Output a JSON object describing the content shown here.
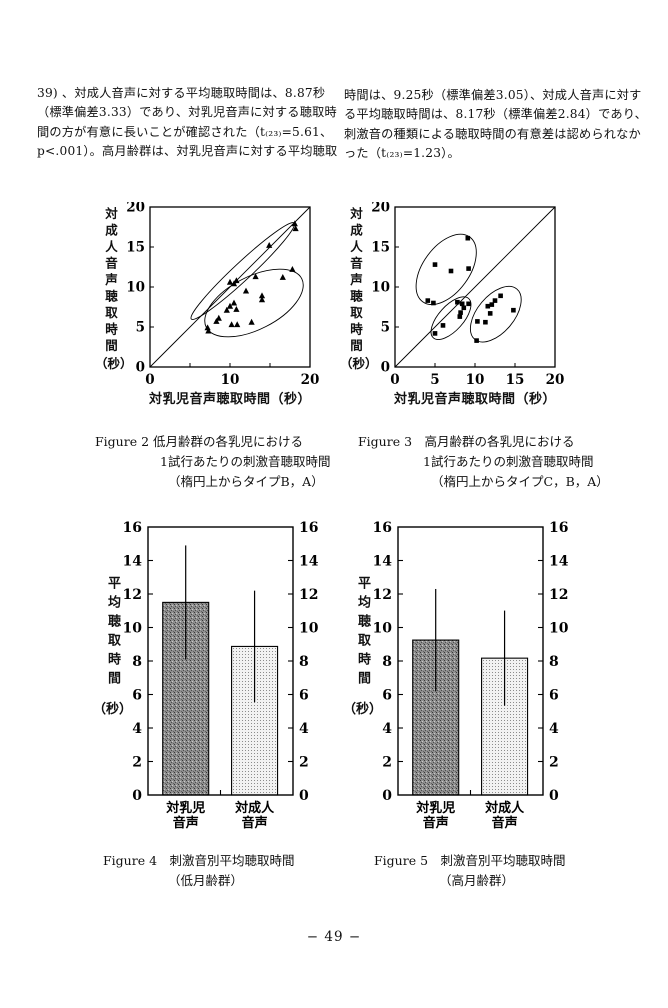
{
  "text": {
    "left_lines": [
      "39) 、対成人音声に対する平均聴取時間は、8.87秒",
      "（標準偏差3.33）であり、対乳児音声に対する聴取時",
      "間の方が有意に長いことが確認された（t₍₂₃₎=5.61、",
      "p<.001）。高月齢群は、対乳児音声に対する平均聴取"
    ],
    "right_lines": [
      "時間は、9.25秒（標準偏差3.05）、対成人音声に対す",
      "る平均聴取時間は、8.17秒（標準偏差2.84）であり、",
      "刺激音の種類による聴取時間の有意差は認められなか",
      "った（t₍₂₃₎=1.23）。"
    ]
  },
  "footer": {
    "page_number": "− 49 −"
  },
  "chart_data": [
    {
      "id": "figure2",
      "type": "scatter",
      "marker": "triangle",
      "caption_lines": [
        "Figure 2 低月齢群の各乳児における",
        "1試行あたりの刺激音聴取時間",
        "（楕円上からタイプB，A）"
      ],
      "xlabel": "対乳児音声聴取時間（秒）",
      "ylabel": "対成人音声聴取時間",
      "ylabel_unit": "（秒）",
      "xlim": [
        0,
        20
      ],
      "ylim": [
        0,
        20
      ],
      "xticks": [
        0,
        10,
        20
      ],
      "xticks_minor": [
        5,
        10,
        15
      ],
      "yticks": [
        0,
        5,
        10,
        15,
        20
      ],
      "yticks_minor": [
        5,
        10,
        15
      ],
      "diagonal": true,
      "points": [
        [
          18.1,
          17.9
        ],
        [
          18.2,
          17.3
        ],
        [
          14.9,
          15.2
        ],
        [
          13.2,
          11.3
        ],
        [
          10.8,
          10.8
        ],
        [
          10.0,
          10.6
        ],
        [
          10.5,
          10.4
        ],
        [
          17.8,
          12.2
        ],
        [
          16.6,
          11.2
        ],
        [
          12.0,
          9.5
        ],
        [
          14.0,
          8.9
        ],
        [
          14.0,
          8.4
        ],
        [
          10.5,
          8.0
        ],
        [
          10.0,
          7.6
        ],
        [
          10.8,
          7.2
        ],
        [
          9.6,
          7.1
        ],
        [
          8.6,
          6.1
        ],
        [
          12.7,
          5.6
        ],
        [
          8.3,
          5.7
        ],
        [
          10.2,
          5.3
        ],
        [
          10.9,
          5.3
        ],
        [
          7.2,
          4.9
        ],
        [
          7.3,
          4.5
        ]
      ],
      "ellipses": [
        {
          "label": "B",
          "cx": 11.6,
          "cy": 12.0,
          "rx": 8.8,
          "ry": 1.1,
          "angle": 43
        },
        {
          "label": "A",
          "cx": 13.0,
          "cy": 8.0,
          "rx": 6.7,
          "ry": 3.3,
          "angle": 27
        }
      ]
    },
    {
      "id": "figure3",
      "type": "scatter",
      "marker": "square",
      "caption_lines": [
        "Figure 3　高月齢群の各乳児における",
        "1試行あたりの刺激音聴取時間",
        "（楕円上からタイプC，B，A）"
      ],
      "xlabel": "対乳児音声聴取時間（秒）",
      "ylabel": "対成人音声聴取時間",
      "ylabel_unit": "（秒）",
      "xlim": [
        0,
        20
      ],
      "ylim": [
        0,
        20
      ],
      "xticks": [
        0,
        5,
        10,
        15,
        20
      ],
      "xticks_minor": [
        5,
        10,
        15
      ],
      "yticks": [
        0,
        5,
        10,
        15,
        20
      ],
      "yticks_minor": [
        5,
        10,
        15
      ],
      "diagonal": true,
      "points": [
        [
          9.1,
          16.1
        ],
        [
          5.0,
          12.8
        ],
        [
          7.0,
          12.0
        ],
        [
          9.2,
          12.3
        ],
        [
          4.1,
          8.3
        ],
        [
          4.8,
          8.0
        ],
        [
          7.8,
          8.1
        ],
        [
          8.4,
          7.9
        ],
        [
          9.2,
          7.9
        ],
        [
          8.6,
          7.4
        ],
        [
          8.2,
          6.8
        ],
        [
          8.1,
          6.3
        ],
        [
          6.0,
          5.2
        ],
        [
          5.0,
          4.2
        ],
        [
          13.2,
          8.9
        ],
        [
          12.5,
          8.3
        ],
        [
          12.1,
          7.8
        ],
        [
          11.6,
          7.6
        ],
        [
          11.9,
          6.7
        ],
        [
          14.8,
          7.1
        ],
        [
          10.3,
          5.7
        ],
        [
          11.3,
          5.6
        ],
        [
          10.2,
          3.3
        ]
      ],
      "ellipses": [
        {
          "label": "C",
          "cx": 6.4,
          "cy": 12.2,
          "rx": 5.0,
          "ry": 2.9,
          "angle": 54
        },
        {
          "label": "B",
          "cx": 7.0,
          "cy": 6.1,
          "rx": 3.3,
          "ry": 1.55,
          "angle": 48
        },
        {
          "label": "A",
          "cx": 12.6,
          "cy": 6.6,
          "rx": 4.1,
          "ry": 2.3,
          "angle": 50
        }
      ]
    },
    {
      "id": "figure4",
      "type": "bar",
      "caption_lines": [
        "Figure 4　刺激音別平均聴取時間",
        "（低月齢群）"
      ],
      "ylabel": "平均聴取時間",
      "ylabel_unit": "（秒）",
      "ylim": [
        0,
        16
      ],
      "yticks": [
        0,
        2,
        4,
        6,
        8,
        10,
        12,
        14,
        16
      ],
      "categories": [
        [
          "対乳児",
          "音声"
        ],
        [
          "対成人",
          "音声"
        ]
      ],
      "values": [
        11.5,
        8.87
      ],
      "errors": [
        3.4,
        3.33
      ],
      "bar_styles": [
        "dark-speckle",
        "light-dots"
      ],
      "bar_colors": {
        "dark": "#8f8f8f",
        "light": "#f2f2f2",
        "outline": "#000000"
      }
    },
    {
      "id": "figure5",
      "type": "bar",
      "caption_lines": [
        "Figure 5　刺激音別平均聴取時間",
        "（高月齢群）"
      ],
      "ylabel": "平均聴取時間",
      "ylabel_unit": "（秒）",
      "ylim": [
        0,
        16
      ],
      "yticks": [
        0,
        2,
        4,
        6,
        8,
        10,
        12,
        14,
        16
      ],
      "categories": [
        [
          "対乳児",
          "音声"
        ],
        [
          "対成人",
          "音声"
        ]
      ],
      "values": [
        9.25,
        8.17
      ],
      "errors": [
        3.05,
        2.84
      ],
      "bar_styles": [
        "dark-speckle",
        "light-dots"
      ],
      "bar_colors": {
        "dark": "#8f8f8f",
        "light": "#f2f2f2",
        "outline": "#000000"
      }
    }
  ]
}
